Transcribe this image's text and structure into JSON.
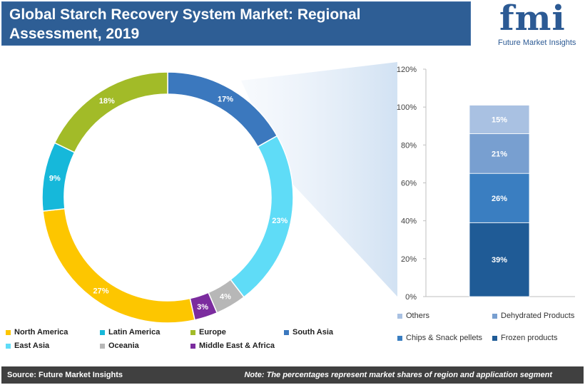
{
  "title": "Global Starch Recovery System Market: Regional Assessment, 2019",
  "logo": {
    "letters": "fmi",
    "subtitle": "Future Market Insights"
  },
  "footer": {
    "source": "Source: Future Market Insights",
    "note": "Note: The percentages represent market shares of region and application segment"
  },
  "chart_data": [
    {
      "type": "pie",
      "variant": "donut",
      "start": "top, clockwise",
      "slices": [
        {
          "label": "South Asia",
          "value": 17,
          "display": "17%",
          "color": "#3b78be"
        },
        {
          "label": "East Asia",
          "value": 23,
          "display": "23%",
          "color": "#5fdcf7"
        },
        {
          "label": "Oceania",
          "value": 4,
          "display": "4%",
          "color": "#b7b7b7"
        },
        {
          "label": "Middle East & Africa",
          "value": 3,
          "display": "3%",
          "color": "#7b2c9e"
        },
        {
          "label": "North America",
          "value": 27,
          "display": "27%",
          "color": "#fdc600"
        },
        {
          "label": "Latin America",
          "value": 9,
          "display": "9%",
          "color": "#16b8da"
        },
        {
          "label": "Europe",
          "value": 18,
          "display": "18%",
          "color": "#a2bb28"
        }
      ],
      "legend": [
        {
          "label": "North America",
          "color": "#fdc600"
        },
        {
          "label": "Latin America",
          "color": "#16b8da"
        },
        {
          "label": "Europe",
          "color": "#a2bb28"
        },
        {
          "label": "South Asia",
          "color": "#3b78be"
        },
        {
          "label": "East Asia",
          "color": "#5fdcf7"
        },
        {
          "label": "Oceania",
          "color": "#b7b7b7"
        },
        {
          "label": "Middle East & Africa",
          "color": "#7b2c9e"
        }
      ],
      "legend_position": "bottom"
    },
    {
      "type": "bar",
      "variant": "stacked",
      "ylim": [
        0,
        120
      ],
      "yticks": [
        "0%",
        "20%",
        "40%",
        "60%",
        "80%",
        "100%",
        "120%"
      ],
      "series": [
        {
          "name": "Frozen products",
          "value": 39,
          "display": "39%",
          "color": "#1f5b96"
        },
        {
          "name": "Chips & Snack pellets",
          "value": 26,
          "display": "26%",
          "color": "#3a7ec1"
        },
        {
          "name": "Dehydrated Products",
          "value": 21,
          "display": "21%",
          "color": "#789fd0"
        },
        {
          "name": "Others",
          "value": 15,
          "display": "15%",
          "color": "#a9c1e2"
        }
      ],
      "legend": [
        {
          "label": "Others",
          "color": "#a9c1e2"
        },
        {
          "label": "Dehydrated Products",
          "color": "#789fd0"
        },
        {
          "label": "Chips & Snack pellets",
          "color": "#3a7ec1"
        },
        {
          "label": "Frozen products",
          "color": "#1f5b96"
        }
      ],
      "legend_position": "bottom",
      "grid": false
    }
  ]
}
